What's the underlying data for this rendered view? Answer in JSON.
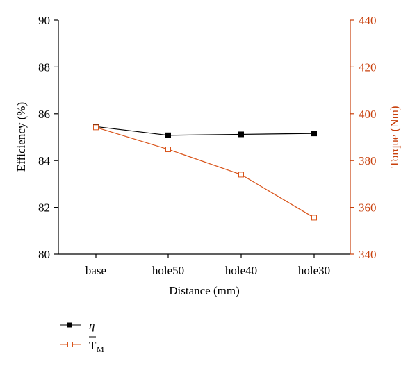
{
  "chart_data": {
    "type": "line",
    "title": "",
    "categories": [
      "base",
      "hole50",
      "hole40",
      "hole30"
    ],
    "xlabel": "Distance (mm)",
    "y_left": {
      "label": "Efficiency (%)",
      "range": [
        80,
        90
      ],
      "ticks": [
        "80",
        "82",
        "84",
        "86",
        "88",
        "90"
      ],
      "color": "#000000"
    },
    "y_right": {
      "label": "Torque (Nm)",
      "range": [
        340,
        440
      ],
      "ticks": [
        "340",
        "360",
        "380",
        "400",
        "420",
        "440"
      ],
      "color": "#c8400c"
    },
    "series": [
      {
        "name": "η",
        "axis": "left",
        "marker": "filled-square",
        "color": "#000000",
        "values": [
          85.45,
          85.08,
          85.12,
          85.16
        ]
      },
      {
        "name": "T̄M",
        "name_main": "T",
        "name_sub": "M",
        "axis": "right",
        "marker": "open-square",
        "color": "#d9541a",
        "values": [
          394.2,
          384.8,
          374.0,
          355.6
        ]
      }
    ],
    "grid": false,
    "legend_placement": "bottom-left"
  }
}
